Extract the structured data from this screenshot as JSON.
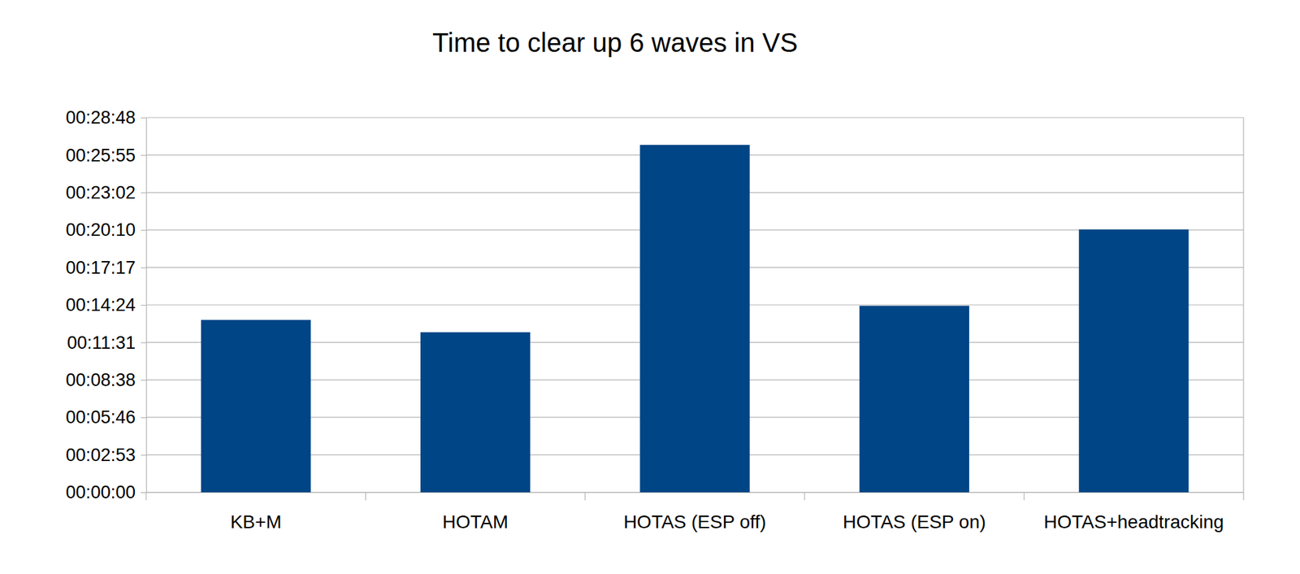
{
  "chart_data": {
    "type": "bar",
    "title": "Time to clear up 6 waves in VS",
    "categories": [
      "KB+M",
      "HOTAM",
      "HOTAS (ESP off)",
      "HOTAS (ESP on)",
      "HOTAS+headtracking"
    ],
    "values": [
      795,
      738,
      1602,
      860,
      1212
    ],
    "color": "#004586",
    "ylim": [
      0,
      1728
    ],
    "yticks": [
      {
        "value": 0,
        "label": "00:00:00"
      },
      {
        "value": 172.8,
        "label": "00:02:53"
      },
      {
        "value": 345.6,
        "label": "00:05:46"
      },
      {
        "value": 518.4,
        "label": "00:08:38"
      },
      {
        "value": 691.2,
        "label": "00:11:31"
      },
      {
        "value": 864,
        "label": "00:14:24"
      },
      {
        "value": 1036.8,
        "label": "00:17:17"
      },
      {
        "value": 1209.6,
        "label": "00:20:10"
      },
      {
        "value": 1382.4,
        "label": "00:23:02"
      },
      {
        "value": 1555.2,
        "label": "00:25:55"
      },
      {
        "value": 1728,
        "label": "00:28:48"
      }
    ],
    "grid": true
  }
}
